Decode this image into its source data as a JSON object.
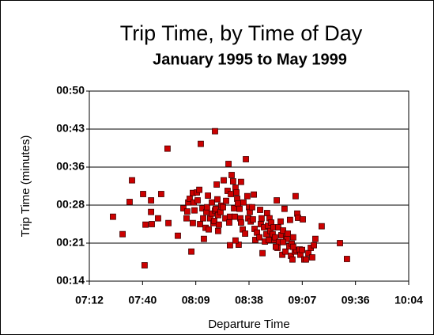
{
  "chart_data": {
    "type": "scatter",
    "title": "Trip Time, by Time of Day",
    "subtitle": "January 1995 to May 1999",
    "x_label": "Departure Time",
    "y_label": "Trip Time (minutes)",
    "color": "#cc0000",
    "grid": true,
    "xlim": [
      432,
      604.8
    ],
    "xticks": [
      {
        "value": 432,
        "label": "07:12"
      },
      {
        "value": 460.8,
        "label": "07:40"
      },
      {
        "value": 489.6,
        "label": "08:09"
      },
      {
        "value": 518.4,
        "label": "08:38"
      },
      {
        "value": 547.2,
        "label": "09:07"
      },
      {
        "value": 576,
        "label": "09:36"
      },
      {
        "value": 604.8,
        "label": "10:04"
      }
    ],
    "ylim": [
      14.4,
      50.4
    ],
    "yticks": [
      {
        "value": 14.4,
        "label": "00:14"
      },
      {
        "value": 21.6,
        "label": "00:21"
      },
      {
        "value": 28.8,
        "label": "00:28"
      },
      {
        "value": 36,
        "label": "00:36"
      },
      {
        "value": 43.2,
        "label": "00:43"
      },
      {
        "value": 50.4,
        "label": "00:50"
      }
    ],
    "x": [
      444.8,
      450.0,
      455.1,
      453.8,
      461.1,
      461.9,
      462.4,
      465.4,
      465.4,
      465.8,
      469.2,
      470.9,
      474.3,
      474.8,
      479.9,
      482.9,
      484.6,
      485.0,
      485.5,
      486.3,
      487.2,
      488.0,
      488.0,
      488.5,
      488.9,
      490.2,
      490.6,
      491.5,
      491.9,
      492.3,
      493.2,
      493.6,
      494.0,
      494.9,
      495.3,
      495.7,
      496.2,
      496.6,
      497.4,
      498.3,
      498.3,
      499.1,
      499.6,
      500.0,
      500.0,
      500.4,
      500.9,
      501.3,
      501.7,
      501.7,
      502.1,
      503.0,
      503.4,
      504.3,
      504.7,
      505.6,
      506.0,
      506.8,
      507.3,
      507.7,
      508.1,
      508.6,
      509.0,
      509.8,
      510.3,
      510.7,
      511.1,
      511.6,
      512.0,
      512.4,
      512.8,
      513.3,
      513.7,
      514.1,
      515.0,
      515.4,
      516.3,
      516.7,
      517.5,
      518.0,
      518.4,
      518.8,
      519.3,
      520.1,
      520.5,
      521.0,
      521.4,
      521.8,
      522.7,
      524.0,
      524.4,
      524.8,
      525.2,
      525.7,
      526.5,
      527.0,
      527.8,
      528.2,
      528.7,
      529.5,
      529.9,
      530.4,
      531.2,
      531.7,
      532.1,
      532.5,
      533.4,
      533.8,
      534.2,
      534.6,
      535.5,
      535.9,
      536.4,
      536.8,
      537.6,
      538.1,
      538.5,
      538.9,
      539.4,
      540.2,
      540.6,
      541.1,
      541.5,
      541.9,
      542.3,
      543.2,
      543.6,
      544.1,
      544.5,
      544.9,
      545.8,
      546.2,
      547.1,
      547.5,
      548.3,
      549.2,
      550.5,
      551.8,
      552.6,
      553.5,
      554.3,
      557.7,
      567.6,
      571.4,
      542.3,
      511.1,
      529.1,
      514.1,
      508.1,
      532.9,
      536.8
    ],
    "values": [
      26.6,
      23.3,
      33.5,
      29.4,
      30.9,
      17.4,
      25.1,
      27.5,
      29.7,
      25.2,
      26.3,
      30.9,
      39.5,
      25.4,
      23.0,
      28.2,
      26.3,
      27.6,
      29.3,
      30.0,
      20.0,
      25.4,
      31.1,
      29.3,
      27.8,
      31.2,
      29.7,
      31.7,
      25.2,
      40.4,
      28.2,
      26.3,
      22.4,
      24.5,
      27.5,
      28.4,
      30.6,
      24.2,
      26.3,
      27.2,
      29.3,
      25.4,
      25.8,
      42.8,
      27.8,
      28.1,
      32.7,
      29.9,
      23.9,
      26.9,
      25.1,
      27.5,
      28.7,
      28.4,
      33.5,
      26.3,
      29.6,
      31.5,
      36.6,
      25.5,
      26.6,
      30.9,
      34.5,
      33.3,
      28.2,
      26.6,
      32.1,
      31.2,
      30.0,
      29.1,
      21.3,
      28.1,
      26.3,
      25.5,
      24.2,
      29.3,
      23.4,
      37.5,
      30.5,
      26.3,
      28.4,
      27.5,
      25.7,
      28.4,
      26.1,
      30.8,
      24.3,
      22.2,
      23.6,
      22.7,
      27.9,
      25.2,
      26.3,
      19.7,
      24.6,
      21.9,
      23.3,
      27.3,
      24.9,
      26.3,
      23.9,
      25.5,
      23.3,
      24.6,
      22.2,
      22.7,
      29.7,
      20.7,
      24.6,
      21.8,
      25.7,
      23.1,
      19.4,
      24.0,
      28.1,
      20.0,
      22.7,
      22.4,
      23.4,
      21.0,
      26.0,
      19.2,
      21.5,
      18.5,
      22.7,
      20.0,
      30.5,
      20.3,
      27.2,
      26.4,
      20.4,
      19.4,
      20.3,
      26.1,
      18.5,
      18.5,
      19.7,
      20.7,
      18.9,
      21.2,
      22.4,
      24.8,
      21.6,
      18.6,
      20.9,
      22.1,
      22.2,
      33.2,
      21.2,
      20.9,
      21.8
    ]
  }
}
